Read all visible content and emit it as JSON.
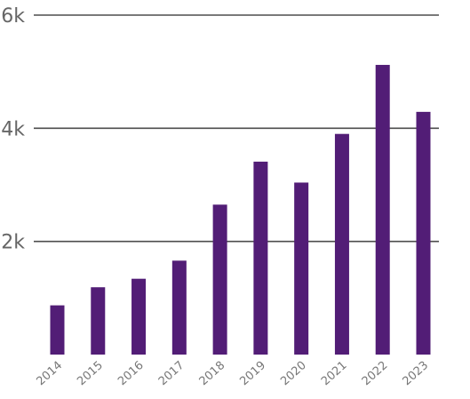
{
  "chart_data": {
    "type": "bar",
    "categories": [
      "2014",
      "2015",
      "2016",
      "2017",
      "2018",
      "2019",
      "2020",
      "2021",
      "2022",
      "2023"
    ],
    "values": [
      870,
      1190,
      1340,
      1660,
      2650,
      3410,
      3040,
      3900,
      5120,
      4290
    ],
    "y_ticks": [
      {
        "value": 2000,
        "label": "2k"
      },
      {
        "value": 4000,
        "label": "4k"
      },
      {
        "value": 6000,
        "label": "6k"
      }
    ],
    "ylim": [
      0,
      6000
    ],
    "grid": true,
    "bar_color": "#521d76",
    "title": "",
    "xlabel": "",
    "ylabel": ""
  }
}
